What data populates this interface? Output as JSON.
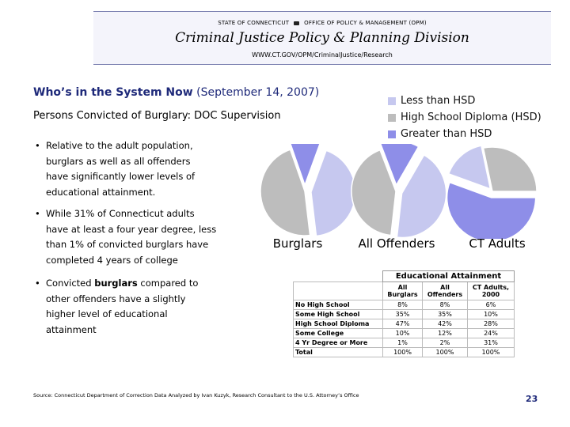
{
  "header": {
    "agency_left": "STATE OF CONNECTICUT",
    "agency_right": "OFFICE OF POLICY & MANAGEMENT (OPM)",
    "division": "Criminal Justice Policy & Planning Division",
    "url": "WWW.CT.GOV/OPM/CriminalJustice/Research"
  },
  "headline": {
    "bold": "Who’s in the System Now",
    "date": "(September 14, 2007)"
  },
  "subhead": "Persons Convicted of Burglary: DOC Supervision",
  "bullets": [
    {
      "lines": [
        "Relative to the adult population,",
        "burglars as well as all offenders",
        "have significantly lower levels of",
        "educational attainment."
      ]
    },
    {
      "lines": [
        "While 31% of Connecticut adults",
        "have at least a four year degree, less",
        "than 1% of convicted burglars have",
        "completed 4 years of college"
      ]
    },
    {
      "line1_prefix": "Convicted ",
      "line1_bold": "burglars",
      "line1_suffix": " compared to",
      "line2": "other offenders have a slightly",
      "line3": "higher level of educational",
      "line4": "attainment"
    }
  ],
  "legend": [
    {
      "label": "Less than HSD",
      "color": "#c6c8ef"
    },
    {
      "label": "High School Diploma (HSD)",
      "color": "#bdbdbd"
    },
    {
      "label": "Greater than HSD",
      "color": "#8e8ee8"
    }
  ],
  "chart_data": {
    "type": "pie",
    "series": [
      {
        "name": "Burglars",
        "values": [
          43,
          47,
          11
        ]
      },
      {
        "name": "All Offenders",
        "values": [
          43,
          42,
          14
        ]
      },
      {
        "name": "CT Adults",
        "values": [
          16,
          28,
          55
        ]
      }
    ],
    "categories": [
      "Less than HSD",
      "High School Diploma (HSD)",
      "Greater than HSD"
    ]
  },
  "table": {
    "caption": "Educational Attainment",
    "columns": [
      "All Burglars",
      "All Offenders",
      "CT Adults, 2000"
    ],
    "column_lines": [
      [
        "All",
        "Burglars"
      ],
      [
        "All",
        "Offenders"
      ],
      [
        "CT Adults,",
        "2000"
      ]
    ],
    "rows": [
      {
        "label": "No High School",
        "values": [
          "8%",
          "8%",
          "6%"
        ]
      },
      {
        "label": "Some High School",
        "values": [
          "35%",
          "35%",
          "10%"
        ]
      },
      {
        "label": "High School Diploma",
        "values": [
          "47%",
          "42%",
          "28%"
        ]
      },
      {
        "label": "Some College",
        "values": [
          "10%",
          "12%",
          "24%"
        ]
      },
      {
        "label": "4 Yr Degree or More",
        "values": [
          "1%",
          "2%",
          "31%"
        ]
      },
      {
        "label": "Total",
        "values": [
          "100%",
          "100%",
          "100%"
        ]
      }
    ]
  },
  "source": "Source: Connecticut Department of Correction Data Analyzed by Ivan Kuzyk, Research Consultant to the U.S. Attorney’s Office",
  "page_number": "23"
}
